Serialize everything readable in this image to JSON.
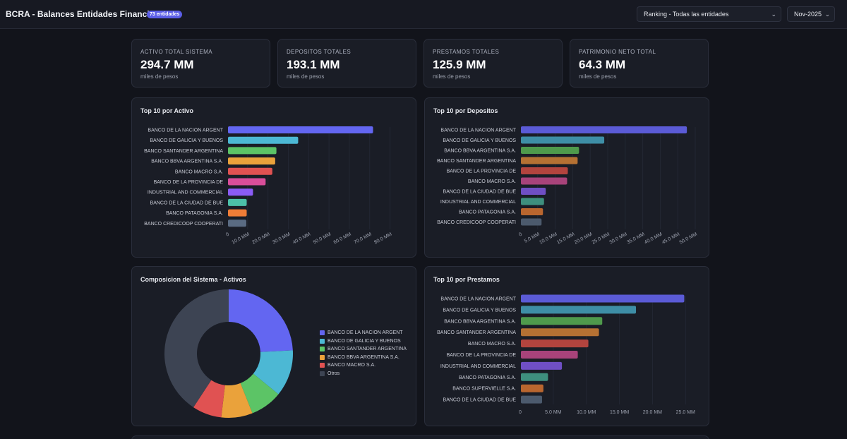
{
  "header": {
    "title": "BCRA - Balances Entidades Financieras",
    "badge": "73 entidades",
    "ranking_select": "Ranking - Todas las entidades",
    "period_select": "Nov-2025"
  },
  "kpis": [
    {
      "label": "ACTIVO TOTAL SISTEMA",
      "value": "294.7 MM",
      "unit": "miles de pesos"
    },
    {
      "label": "DEPOSITOS TOTALES",
      "value": "193.1 MM",
      "unit": "miles de pesos"
    },
    {
      "label": "PRESTAMOS TOTALES",
      "value": "125.9 MM",
      "unit": "miles de pesos"
    },
    {
      "label": "PATRIMONIO NETO TOTAL",
      "value": "64.3 MM",
      "unit": "miles de pesos"
    }
  ],
  "colors": {
    "palette": [
      "#6366f1",
      "#4cb8d4",
      "#5cc466",
      "#eaa23b",
      "#e05252",
      "#d94e9a",
      "#8b5cf6",
      "#4cc0a8",
      "#ef7d37",
      "#5a6b82"
    ],
    "muted_palette": [
      "#5b5bd6",
      "#3e8ea6",
      "#4f9a4c",
      "#b57133",
      "#b3443e",
      "#a8437a",
      "#6f4fc4",
      "#3e8f7e",
      "#b9662f",
      "#4c5a6d"
    ],
    "others": "#3d4453"
  },
  "chart_data": [
    {
      "type": "bar",
      "orientation": "horizontal",
      "title": "Top 10 por Activo",
      "categories": [
        "BANCO DE LA NACION ARGENT",
        "BANCO DE GALICIA Y BUENOS",
        "BANCO SANTANDER ARGENTINA",
        "BANCO BBVA ARGENTINA S.A.",
        "BANCO MACRO S.A.",
        "BANCO DE LA PROVINCIA DE",
        "INDUSTRIAL AND COMMERCIAL",
        "BANCO DE LA CIUDAD DE BUE",
        "BANCO PATAGONIA S.A.",
        "BANCO CREDICOOP COOPERATI"
      ],
      "values": [
        71.3,
        34.5,
        23.8,
        23.2,
        21.8,
        18.5,
        12.3,
        9.2,
        9.2,
        9.0
      ],
      "xlim": [
        0,
        85
      ],
      "ticks": [
        "0",
        "10.0 MM",
        "20.0 MM",
        "30.0 MM",
        "40.0 MM",
        "50.0 MM",
        "60.0 MM",
        "70.0 MM",
        "80.0 MM"
      ],
      "tick_values": [
        0,
        10,
        20,
        30,
        40,
        50,
        60,
        70,
        80
      ],
      "rotated_ticks": true
    },
    {
      "type": "bar",
      "orientation": "horizontal",
      "title": "Top 10 por Depositos",
      "categories": [
        "BANCO DE LA NACION ARGENT",
        "BANCO DE GALICIA Y BUENOS",
        "BANCO BBVA ARGENTINA S.A.",
        "BANCO SANTANDER ARGENTINA",
        "BANCO DE LA PROVINCIA DE",
        "BANCO MACRO S.A.",
        "BANCO DE LA CIUDAD DE BUE",
        "INDUSTRIAL AND COMMERCIAL",
        "BANCO PATAGONIA S.A.",
        "BANCO CREDICOOP COOPERATI"
      ],
      "values": [
        47.4,
        23.8,
        16.6,
        16.2,
        13.4,
        13.2,
        7.1,
        6.6,
        6.3,
        5.9
      ],
      "xlim": [
        0,
        51
      ],
      "ticks": [
        "0",
        "5.0 MM",
        "10.0 MM",
        "15.0 MM",
        "20.0 MM",
        "25.0 MM",
        "30.0 MM",
        "35.0 MM",
        "40.0 MM",
        "45.0 MM",
        "50.0 MM"
      ],
      "tick_values": [
        0,
        5,
        10,
        15,
        20,
        25,
        30,
        35,
        40,
        45,
        50
      ],
      "rotated_ticks": true
    },
    {
      "type": "pie",
      "title": "Composicion del Sistema - Activos",
      "labels": [
        "BANCO DE LA NACION ARGENT",
        "BANCO DE GALICIA Y BUENOS",
        "BANCO SANTANDER ARGENTINA",
        "BANCO BBVA ARGENTINA S.A.",
        "BANCO MACRO S.A.",
        "Otros"
      ],
      "values": [
        71.3,
        34.5,
        23.8,
        23.2,
        21.8,
        120.1
      ]
    },
    {
      "type": "bar",
      "orientation": "horizontal",
      "title": "Top 10 por Prestamos",
      "categories": [
        "BANCO DE LA NACION ARGENT",
        "BANCO DE GALICIA Y BUENOS",
        "BANCO BBVA ARGENTINA S.A.",
        "BANCO SANTANDER ARGENTINA",
        "BANCO MACRO S.A.",
        "BANCO DE LA PROVINCIA DE",
        "INDUSTRIAL AND COMMERCIAL",
        "BANCO PATAGONIA S.A.",
        "BANCO SUPERVIELLE S.A.",
        "BANCO DE LA CIUDAD DE BUE"
      ],
      "values": [
        24.7,
        17.4,
        12.3,
        11.8,
        10.2,
        8.6,
        6.2,
        4.1,
        3.4,
        3.2
      ],
      "xlim": [
        0,
        27
      ],
      "ticks": [
        "0",
        "5.0 MM",
        "10.0 MM",
        "15.0 MM",
        "20.0 MM",
        "25.0 MM"
      ],
      "tick_values": [
        0,
        5,
        10,
        15,
        20,
        25
      ],
      "rotated_ticks": false
    }
  ]
}
